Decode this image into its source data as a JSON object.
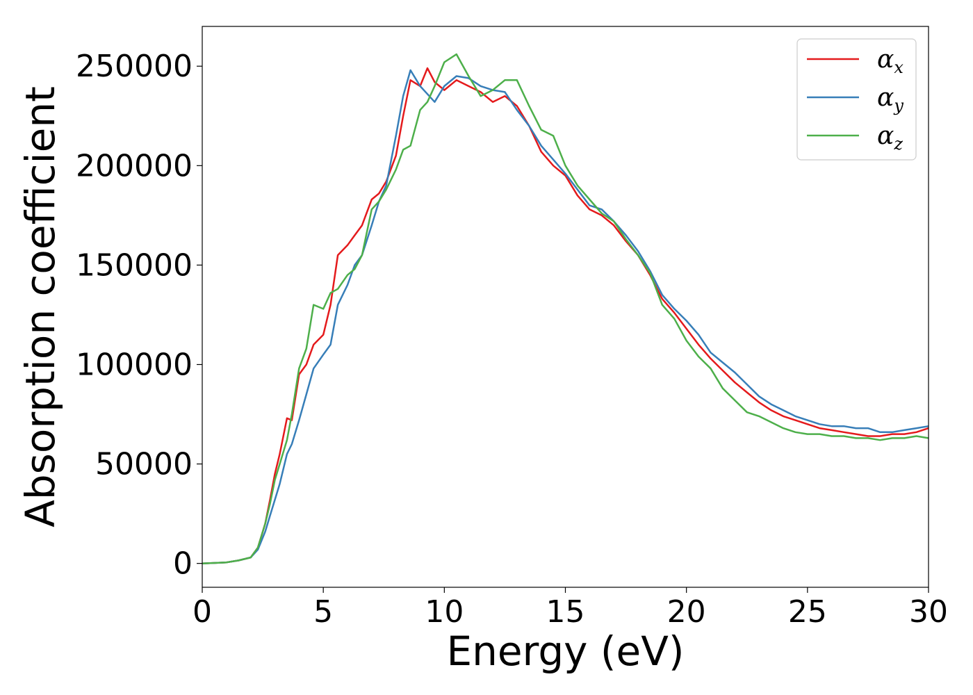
{
  "chart_data": {
    "type": "line",
    "title": "",
    "xlabel": "Energy (eV)",
    "ylabel": "Absorption coefficient",
    "xlim": [
      0,
      30
    ],
    "ylim": [
      -12000,
      270000
    ],
    "xticks": [
      0,
      5,
      10,
      15,
      20,
      25,
      30
    ],
    "xtick_labels": [
      "0",
      "5",
      "10",
      "15",
      "20",
      "25",
      "30"
    ],
    "yticks": [
      0,
      50000,
      100000,
      150000,
      200000,
      250000
    ],
    "ytick_labels": [
      "0",
      "50000",
      "100000",
      "150000",
      "200000",
      "250000"
    ],
    "grid": false,
    "legend_position": "top-right",
    "series": [
      {
        "name": "α",
        "subscript": "x",
        "color": "#e41a1c",
        "x": [
          0,
          1,
          1.5,
          2,
          2.3,
          2.6,
          2.8,
          3.0,
          3.2,
          3.5,
          3.7,
          4.0,
          4.3,
          4.6,
          5.0,
          5.3,
          5.6,
          6.0,
          6.3,
          6.6,
          7.0,
          7.3,
          7.6,
          8.0,
          8.3,
          8.6,
          9.0,
          9.3,
          9.6,
          10.0,
          10.5,
          11.0,
          11.5,
          12.0,
          12.5,
          13.0,
          13.5,
          14.0,
          14.5,
          15.0,
          15.5,
          16.0,
          16.5,
          17.0,
          17.5,
          18.0,
          18.5,
          19.0,
          19.5,
          20.0,
          20.5,
          21.0,
          21.5,
          22.0,
          22.5,
          23.0,
          23.5,
          24.0,
          24.5,
          25.0,
          25.5,
          26.0,
          26.5,
          27.0,
          27.5,
          28.0,
          28.5,
          29.0,
          29.5,
          30.0
        ],
        "y": [
          0,
          500,
          1500,
          3000,
          8000,
          20000,
          32000,
          45000,
          55000,
          73000,
          72000,
          95000,
          100000,
          110000,
          115000,
          130000,
          155000,
          160000,
          165000,
          170000,
          183000,
          186000,
          192000,
          205000,
          225000,
          243000,
          240000,
          249000,
          242000,
          238000,
          243000,
          240000,
          237000,
          232000,
          235000,
          230000,
          220000,
          207000,
          200000,
          195000,
          185000,
          178000,
          175000,
          170000,
          162000,
          155000,
          145000,
          133000,
          126000,
          118000,
          110000,
          103000,
          97000,
          91000,
          86000,
          81000,
          77000,
          74000,
          72000,
          70000,
          68000,
          67000,
          66000,
          65000,
          64000,
          64000,
          65000,
          65000,
          66000,
          68000
        ]
      },
      {
        "name": "α",
        "subscript": "y",
        "color": "#377eb8",
        "x": [
          0,
          1,
          1.5,
          2,
          2.3,
          2.6,
          2.8,
          3.0,
          3.2,
          3.5,
          3.7,
          4.0,
          4.3,
          4.6,
          5.0,
          5.3,
          5.6,
          6.0,
          6.3,
          6.6,
          7.0,
          7.3,
          7.6,
          8.0,
          8.3,
          8.6,
          9.0,
          9.3,
          9.6,
          10.0,
          10.5,
          11.0,
          11.5,
          12.0,
          12.5,
          13.0,
          13.5,
          14.0,
          14.5,
          15.0,
          15.5,
          16.0,
          16.5,
          17.0,
          17.5,
          18.0,
          18.5,
          19.0,
          19.5,
          20.0,
          20.5,
          21.0,
          21.5,
          22.0,
          22.5,
          23.0,
          23.5,
          24.0,
          24.5,
          25.0,
          25.5,
          26.0,
          26.5,
          27.0,
          27.5,
          28.0,
          28.5,
          29.0,
          29.5,
          30.0
        ],
        "y": [
          0,
          500,
          1500,
          3000,
          7000,
          16000,
          24000,
          32000,
          40000,
          55000,
          60000,
          72000,
          85000,
          98000,
          105000,
          110000,
          130000,
          140000,
          150000,
          155000,
          170000,
          182000,
          190000,
          215000,
          235000,
          248000,
          240000,
          236000,
          232000,
          240000,
          245000,
          244000,
          240000,
          238000,
          237000,
          228000,
          220000,
          210000,
          203000,
          196000,
          188000,
          180000,
          178000,
          172000,
          165000,
          157000,
          147000,
          135000,
          128000,
          122000,
          115000,
          106000,
          101000,
          96000,
          90000,
          84000,
          80000,
          77000,
          74000,
          72000,
          70000,
          69000,
          69000,
          68000,
          68000,
          66000,
          66000,
          67000,
          68000,
          69000
        ]
      },
      {
        "name": "α",
        "subscript": "z",
        "color": "#4daf4a",
        "x": [
          0,
          1,
          1.5,
          2,
          2.3,
          2.6,
          2.8,
          3.0,
          3.2,
          3.5,
          3.7,
          4.0,
          4.3,
          4.6,
          5.0,
          5.3,
          5.6,
          6.0,
          6.3,
          6.6,
          7.0,
          7.3,
          7.6,
          8.0,
          8.3,
          8.6,
          9.0,
          9.3,
          9.6,
          10.0,
          10.5,
          11.0,
          11.5,
          12.0,
          12.5,
          13.0,
          13.5,
          14.0,
          14.5,
          15.0,
          15.5,
          16.0,
          16.5,
          17.0,
          17.5,
          18.0,
          18.5,
          19.0,
          19.5,
          20.0,
          20.5,
          21.0,
          21.5,
          22.0,
          22.5,
          23.0,
          23.5,
          24.0,
          24.5,
          25.0,
          25.5,
          26.0,
          26.5,
          27.0,
          27.5,
          28.0,
          28.5,
          29.0,
          29.5,
          30.0
        ],
        "y": [
          0,
          500,
          1500,
          3000,
          8000,
          20000,
          30000,
          42000,
          50000,
          62000,
          75000,
          98000,
          108000,
          130000,
          128000,
          136000,
          138000,
          145000,
          148000,
          155000,
          178000,
          182000,
          188000,
          198000,
          208000,
          210000,
          228000,
          232000,
          240000,
          252000,
          256000,
          245000,
          235000,
          238000,
          243000,
          243000,
          230000,
          218000,
          215000,
          200000,
          190000,
          183000,
          176000,
          172000,
          163000,
          155000,
          146000,
          130000,
          123000,
          112000,
          104000,
          98000,
          88000,
          82000,
          76000,
          74000,
          71000,
          68000,
          66000,
          65000,
          65000,
          64000,
          64000,
          63000,
          63000,
          62000,
          63000,
          63000,
          64000,
          63000
        ]
      }
    ]
  }
}
